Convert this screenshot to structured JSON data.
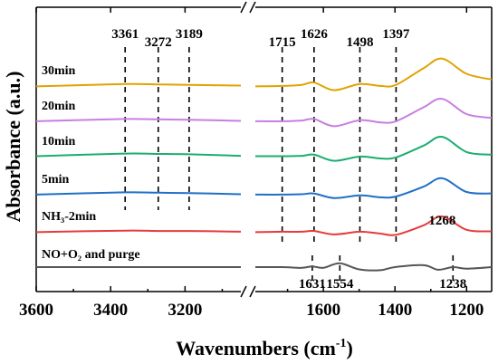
{
  "chart_data": {
    "type": "line",
    "title": "",
    "xlabel_main": "Wavenumbers (cm",
    "xlabel_sup": "-1",
    "xlabel_tail": ")",
    "ylabel": "Absorbance (a.u.)",
    "x_axis_reversed": true,
    "x_segments": [
      {
        "xlim": [
          3600,
          3050
        ],
        "ticks": [
          "3600",
          "3400",
          "3200"
        ],
        "tick_values": [
          3600,
          3400,
          3200
        ]
      },
      {
        "xlim": [
          1790,
          1130
        ],
        "ticks": [
          "1600",
          "1400",
          "1200"
        ],
        "tick_values": [
          1600,
          1400,
          1200
        ]
      }
    ],
    "series": [
      {
        "name": "30min",
        "color": "#E0A300",
        "left": {
          "x": [
            3600,
            3361,
            3272,
            3189,
            3050
          ],
          "y": [
            0.92,
            0.98,
            0.97,
            0.96,
            0.94
          ]
        },
        "right": {
          "x": [
            1790,
            1715,
            1660,
            1626,
            1570,
            1498,
            1440,
            1397,
            1320,
            1268,
            1200,
            1130
          ],
          "y": [
            0.92,
            0.93,
            0.96,
            1.02,
            0.82,
            0.98,
            0.93,
            0.96,
            1.4,
            1.65,
            1.25,
            1.1
          ]
        }
      },
      {
        "name": "20min",
        "color": "#C77FE0",
        "left": {
          "x": [
            3600,
            3361,
            3272,
            3189,
            3050
          ],
          "y": [
            0.93,
            0.99,
            0.98,
            0.97,
            0.94
          ]
        },
        "right": {
          "x": [
            1790,
            1715,
            1660,
            1626,
            1570,
            1498,
            1440,
            1397,
            1320,
            1268,
            1200,
            1130
          ],
          "y": [
            0.93,
            0.93,
            0.95,
            0.99,
            0.8,
            0.96,
            0.9,
            0.93,
            1.3,
            1.52,
            1.12,
            1.02
          ]
        }
      },
      {
        "name": "10min",
        "color": "#1AAE6F",
        "left": {
          "x": [
            3600,
            3361,
            3272,
            3189,
            3050
          ],
          "y": [
            0.94,
            1.01,
            1.0,
            0.99,
            0.95
          ]
        },
        "right": {
          "x": [
            1790,
            1715,
            1660,
            1626,
            1570,
            1498,
            1440,
            1397,
            1320,
            1268,
            1200,
            1130
          ],
          "y": [
            0.94,
            0.94,
            0.95,
            0.98,
            0.82,
            0.93,
            0.88,
            0.91,
            1.22,
            1.45,
            1.05,
            0.98
          ]
        }
      },
      {
        "name": "5min",
        "color": "#1F6FC7",
        "left": {
          "x": [
            3600,
            3361,
            3272,
            3189,
            3050
          ],
          "y": [
            0.93,
            0.99,
            0.98,
            0.97,
            0.94
          ]
        },
        "right": {
          "x": [
            1790,
            1715,
            1660,
            1626,
            1570,
            1498,
            1440,
            1397,
            1320,
            1268,
            1200,
            1130
          ],
          "y": [
            0.93,
            0.93,
            0.94,
            0.96,
            0.84,
            0.91,
            0.86,
            0.88,
            1.14,
            1.36,
            1.0,
            0.96
          ]
        }
      },
      {
        "name": "NH₃-2min",
        "color": "#E63B3B",
        "left": {
          "x": [
            3600,
            3361,
            3272,
            3189,
            3050
          ],
          "y": [
            0.92,
            0.96,
            0.95,
            0.95,
            0.93
          ]
        },
        "right": {
          "x": [
            1790,
            1715,
            1660,
            1626,
            1570,
            1498,
            1440,
            1397,
            1320,
            1268,
            1200,
            1130
          ],
          "y": [
            0.92,
            0.93,
            0.93,
            0.95,
            0.86,
            0.93,
            0.88,
            0.85,
            1.1,
            1.33,
            0.98,
            0.94
          ]
        }
      },
      {
        "name": "NO+O₂ and purge",
        "color": "#555555",
        "left": {
          "x": [
            3600,
            3361,
            3272,
            3189,
            3050
          ],
          "y": [
            1.0,
            1.0,
            1.0,
            1.0,
            1.0
          ]
        },
        "right": {
          "x": [
            1790,
            1715,
            1660,
            1631,
            1600,
            1554,
            1500,
            1440,
            1400,
            1320,
            1280,
            1238,
            1200,
            1130
          ],
          "y": [
            1.0,
            1.0,
            0.98,
            1.02,
            0.98,
            1.1,
            0.94,
            0.92,
            1.0,
            1.05,
            0.93,
            1.0,
            0.96,
            1.0
          ]
        }
      }
    ],
    "peak_labels_top": [
      {
        "label": "3361",
        "x": 3361,
        "segment": 0
      },
      {
        "label": "3272",
        "x": 3272,
        "segment": 0
      },
      {
        "label": "3189",
        "x": 3189,
        "segment": 0
      },
      {
        "label": "1715",
        "x": 1715,
        "segment": 1
      },
      {
        "label": "1626",
        "x": 1626,
        "segment": 1
      },
      {
        "label": "1498",
        "x": 1498,
        "segment": 1
      },
      {
        "label": "1397",
        "x": 1397,
        "segment": 1
      }
    ],
    "peak_labels_bottom": [
      {
        "label": "1268",
        "x": 1268,
        "segment": 1
      },
      {
        "label": "1631",
        "x": 1631,
        "segment": 1
      },
      {
        "label": "1554",
        "x": 1554,
        "segment": 1
      },
      {
        "label": "1238",
        "x": 1238,
        "segment": 1
      }
    ]
  }
}
